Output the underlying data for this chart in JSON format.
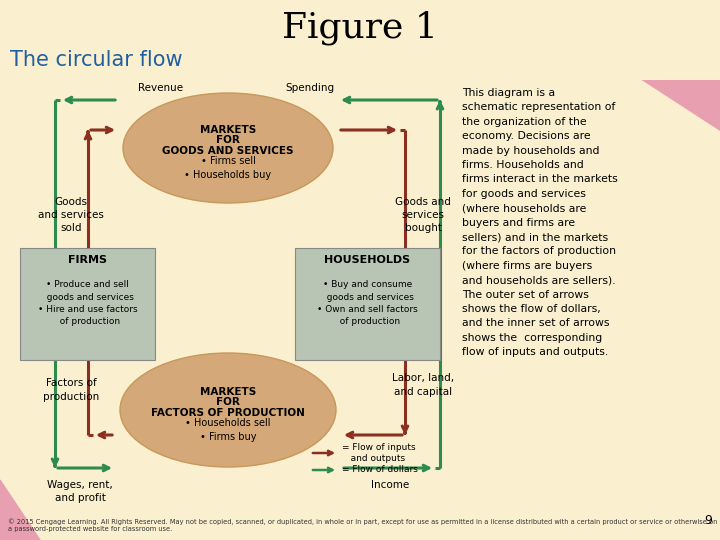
{
  "title": "Figure 1",
  "subtitle": "The circular flow",
  "bg_color": "#FAF0D0",
  "slide_bg": "#FFFFFF",
  "pink_color": "#E8A0B0",
  "oval_color": "#D4A878",
  "oval_edge": "#C89858",
  "box_color": "#B8C4B4",
  "box_edge": "#888888",
  "green": "#2E8B50",
  "red": "#8B3020",
  "title_fontsize": 24,
  "subtitle_fontsize": 15,
  "footer_text": "© 2015 Cengage Learning. All Rights Reserved. May not be copied, scanned, or duplicated, in whole or in part, except for use as permitted in a license distributed with a certain product or service or otherwise on a password-protected website for classroom use.",
  "page_num": "9",
  "description": "This diagram is a\nschematic representation of\nthe organization of the\neconomy. Decisions are\nmade by households and\nfirms. Households and\nfirms interact in the markets\nfor goods and services\n(where households are\nbuyers and firms are\nsellers) and in the markets\nfor the factors of production\n(where firms are buyers\nand households are sellers).\nThe outer set of arrows\nshows the flow of dollars,\nand the inner set of arrows\nshows the  corresponding\nflow of inputs and outputs.",
  "top_oval_line1": "MARKETS",
  "top_oval_line2": "FOR",
  "top_oval_line3": "GOODS AND SERVICES",
  "top_oval_bullets": "• Firms sell\n• Households buy",
  "bot_oval_line1": "MARKETS",
  "bot_oval_line2": "FOR",
  "bot_oval_line3": "FACTORS OF PRODUCTION",
  "bot_oval_bullets": "• Households sell\n• Firms buy",
  "firms_title": "FIRMS",
  "firms_bullets": "• Produce and sell\n  goods and services\n• Hire and use factors\n  of production",
  "hh_title": "HOUSEHOLDS",
  "hh_bullets": "• Buy and consume\n  goods and services\n• Own and sell factors\n  of production",
  "lbl_revenue": "Revenue",
  "lbl_spending": "Spending",
  "lbl_goods_sold": "Goods\nand services\nsold",
  "lbl_goods_bought": "Goods and\nservices\nbought",
  "lbl_wages": "Wages, rent,\nand profit",
  "lbl_income": "Income",
  "lbl_factors": "Factors of\nproduction",
  "lbl_labor": "Labor, land,\nand capital",
  "leg1": "= Flow of inputs\n   and outputs",
  "leg2": "= Flow of dollars"
}
